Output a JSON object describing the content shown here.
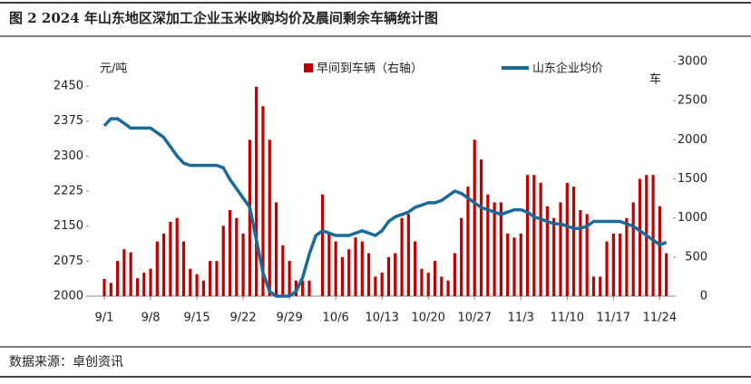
{
  "chart_data": {
    "type": "bar_line",
    "title": "图 2 2024 年山东地区深加工企业玉米收购均价及晨间剩余车辆统计图",
    "source": "数据来源：卓创资讯",
    "ylabel": "元/吨",
    "y2label": "车",
    "categories": [
      "9/1",
      null,
      null,
      null,
      null,
      null,
      null,
      "9/8",
      null,
      null,
      null,
      null,
      null,
      null,
      "9/15",
      null,
      null,
      null,
      null,
      null,
      null,
      "9/22",
      null,
      null,
      null,
      null,
      null,
      null,
      "9/29",
      null,
      null,
      null,
      null,
      null,
      null,
      "10/6",
      null,
      null,
      null,
      null,
      null,
      null,
      "10/13",
      null,
      null,
      null,
      null,
      null,
      null,
      "10/20",
      null,
      null,
      null,
      null,
      null,
      null,
      "10/27",
      null,
      null,
      null,
      null,
      null,
      null,
      "11/3",
      null,
      null,
      null,
      null,
      null,
      null,
      "11/10",
      null,
      null,
      null,
      null,
      null,
      null,
      "11/17",
      null,
      null,
      null,
      null,
      null,
      null,
      "11/24",
      null
    ],
    "series": [
      {
        "name": "早间到车辆（右轴）",
        "color": "#c00000",
        "axis": "y2",
        "type": "bar",
        "values": [
          220,
          170,
          450,
          600,
          560,
          230,
          300,
          350,
          700,
          800,
          950,
          1000,
          700,
          350,
          280,
          200,
          450,
          450,
          900,
          1100,
          1000,
          800,
          2000,
          2680,
          2430,
          2000,
          1200,
          650,
          450,
          200,
          200,
          200,
          null,
          1300,
          800,
          700,
          500,
          600,
          750,
          700,
          550,
          250,
          300,
          500,
          550,
          1000,
          1050,
          700,
          350,
          300,
          450,
          250,
          200,
          550,
          1000,
          1400,
          2000,
          1750,
          1300,
          1200,
          1200,
          800,
          750,
          800,
          1550,
          1550,
          1450,
          1150,
          1000,
          1200,
          1450,
          1400,
          1100,
          1050,
          250,
          250,
          700,
          800,
          800,
          1000,
          1200,
          1500,
          1550,
          1550,
          1150,
          550
        ]
      },
      {
        "name": "山东企业均价",
        "color": "#1a6a99",
        "type": "line",
        "values": [
          2365,
          2380,
          2380,
          2370,
          2360,
          2360,
          2360,
          2360,
          2350,
          2340,
          2320,
          2300,
          2285,
          2280,
          2280,
          2280,
          2280,
          2280,
          2275,
          2250,
          2230,
          2210,
          2190,
          2120,
          2050,
          2010,
          2000,
          2000,
          2000,
          2010,
          2040,
          2090,
          2130,
          2140,
          2135,
          2130,
          2130,
          2130,
          2135,
          2140,
          2135,
          2130,
          2140,
          2160,
          2170,
          2175,
          2180,
          2190,
          2195,
          2200,
          2200,
          2205,
          2215,
          2225,
          2220,
          2210,
          2200,
          2190,
          2185,
          2180,
          2175,
          2180,
          2185,
          2185,
          2180,
          2170,
          2165,
          2160,
          2155,
          2155,
          2150,
          2145,
          2145,
          2150,
          2160,
          2160,
          2160,
          2160,
          2160,
          2155,
          2150,
          2140,
          2130,
          2120,
          2110,
          2115
        ]
      }
    ],
    "ylim": [
      2000,
      2450
    ],
    "yticks": [
      2000,
      2075,
      2150,
      2225,
      2300,
      2375,
      2450
    ],
    "y2lim": [
      0,
      3000
    ],
    "y2ticks": [
      0,
      500,
      1000,
      1500,
      2000,
      2500,
      3000
    ]
  }
}
